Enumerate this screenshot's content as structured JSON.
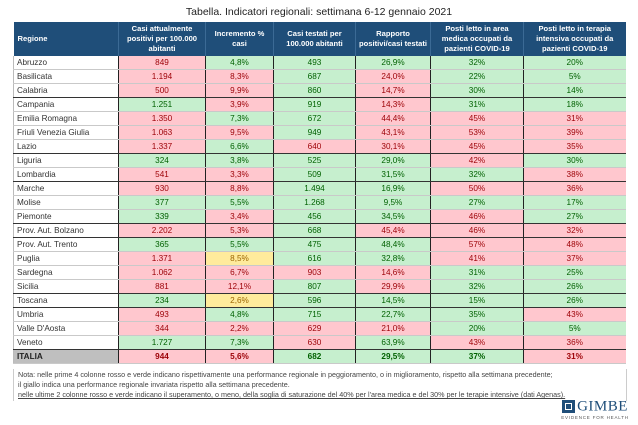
{
  "title": "Tabella. Indicatori regionali: settimana 6-12 gennaio 2021",
  "headers": [
    "Regione",
    "Casi attualmente positivi per 100.000 abitanti",
    "Incremento % casi",
    "Casi testati per 100.000 abitanti",
    "Rapporto positivi/casi testati",
    "Posti letto in area medica occupati da pazienti COVID-19",
    "Posti letto in terapia intensiva occupati da pazienti COVID-19"
  ],
  "rows": [
    {
      "region": "Abruzzo",
      "cells": [
        [
          "849",
          "red"
        ],
        [
          "4,8%",
          "green"
        ],
        [
          "493",
          "green"
        ],
        [
          "26,9%",
          "green"
        ],
        [
          "32%",
          "green"
        ],
        [
          "20%",
          "green"
        ]
      ]
    },
    {
      "region": "Basilicata",
      "cells": [
        [
          "1.194",
          "red"
        ],
        [
          "8,3%",
          "red"
        ],
        [
          "687",
          "green"
        ],
        [
          "24,0%",
          "red"
        ],
        [
          "22%",
          "green"
        ],
        [
          "5%",
          "green"
        ]
      ]
    },
    {
      "region": "Calabria",
      "cells": [
        [
          "500",
          "red"
        ],
        [
          "9,9%",
          "red"
        ],
        [
          "860",
          "green"
        ],
        [
          "14,7%",
          "red"
        ],
        [
          "30%",
          "green"
        ],
        [
          "14%",
          "green"
        ]
      ]
    },
    {
      "region": "Campania",
      "cells": [
        [
          "1.251",
          "green"
        ],
        [
          "3,9%",
          "red"
        ],
        [
          "919",
          "green"
        ],
        [
          "14,3%",
          "red"
        ],
        [
          "31%",
          "green"
        ],
        [
          "18%",
          "green"
        ]
      ]
    },
    {
      "region": "Emilia Romagna",
      "cells": [
        [
          "1.350",
          "red"
        ],
        [
          "7,3%",
          "green"
        ],
        [
          "672",
          "green"
        ],
        [
          "44,4%",
          "red"
        ],
        [
          "45%",
          "red"
        ],
        [
          "31%",
          "red"
        ]
      ]
    },
    {
      "region": "Friuli Venezia Giulia",
      "cells": [
        [
          "1.063",
          "red"
        ],
        [
          "9,5%",
          "red"
        ],
        [
          "949",
          "green"
        ],
        [
          "43,1%",
          "red"
        ],
        [
          "53%",
          "red"
        ],
        [
          "39%",
          "red"
        ]
      ]
    },
    {
      "region": "Lazio",
      "cells": [
        [
          "1.337",
          "red"
        ],
        [
          "6,6%",
          "green"
        ],
        [
          "640",
          "red"
        ],
        [
          "30,1%",
          "red"
        ],
        [
          "45%",
          "red"
        ],
        [
          "35%",
          "red"
        ]
      ]
    },
    {
      "region": "Liguria",
      "cells": [
        [
          "324",
          "green"
        ],
        [
          "3,8%",
          "green"
        ],
        [
          "525",
          "green"
        ],
        [
          "29,0%",
          "green"
        ],
        [
          "42%",
          "red"
        ],
        [
          "30%",
          "green"
        ]
      ]
    },
    {
      "region": "Lombardia",
      "cells": [
        [
          "541",
          "red"
        ],
        [
          "3,3%",
          "red"
        ],
        [
          "509",
          "green"
        ],
        [
          "31,5%",
          "green"
        ],
        [
          "32%",
          "green"
        ],
        [
          "38%",
          "red"
        ]
      ]
    },
    {
      "region": "Marche",
      "cells": [
        [
          "930",
          "red"
        ],
        [
          "8,8%",
          "red"
        ],
        [
          "1.494",
          "green"
        ],
        [
          "16,9%",
          "green"
        ],
        [
          "50%",
          "red"
        ],
        [
          "36%",
          "red"
        ]
      ]
    },
    {
      "region": "Molise",
      "cells": [
        [
          "377",
          "green"
        ],
        [
          "5,5%",
          "green"
        ],
        [
          "1.268",
          "green"
        ],
        [
          "9,5%",
          "green"
        ],
        [
          "27%",
          "green"
        ],
        [
          "17%",
          "green"
        ]
      ]
    },
    {
      "region": "Piemonte",
      "cells": [
        [
          "339",
          "green"
        ],
        [
          "3,4%",
          "red"
        ],
        [
          "456",
          "green"
        ],
        [
          "34,5%",
          "green"
        ],
        [
          "46%",
          "red"
        ],
        [
          "27%",
          "green"
        ]
      ]
    },
    {
      "region": "Prov. Aut. Bolzano",
      "cells": [
        [
          "2.202",
          "red"
        ],
        [
          "5,3%",
          "red"
        ],
        [
          "668",
          "green"
        ],
        [
          "45,4%",
          "red"
        ],
        [
          "46%",
          "red"
        ],
        [
          "32%",
          "red"
        ]
      ]
    },
    {
      "region": "Prov. Aut. Trento",
      "cells": [
        [
          "365",
          "green"
        ],
        [
          "5,5%",
          "green"
        ],
        [
          "475",
          "green"
        ],
        [
          "48,4%",
          "green"
        ],
        [
          "57%",
          "red"
        ],
        [
          "48%",
          "red"
        ]
      ]
    },
    {
      "region": "Puglia",
      "cells": [
        [
          "1.371",
          "red"
        ],
        [
          "8,5%",
          "yellow"
        ],
        [
          "616",
          "green"
        ],
        [
          "32,8%",
          "green"
        ],
        [
          "41%",
          "red"
        ],
        [
          "37%",
          "red"
        ]
      ]
    },
    {
      "region": "Sardegna",
      "cells": [
        [
          "1.062",
          "red"
        ],
        [
          "6,7%",
          "red"
        ],
        [
          "903",
          "red"
        ],
        [
          "14,6%",
          "red"
        ],
        [
          "31%",
          "green"
        ],
        [
          "25%",
          "green"
        ]
      ]
    },
    {
      "region": "Sicilia",
      "cells": [
        [
          "881",
          "red"
        ],
        [
          "12,1%",
          "red"
        ],
        [
          "807",
          "green"
        ],
        [
          "29,9%",
          "red"
        ],
        [
          "32%",
          "green"
        ],
        [
          "26%",
          "green"
        ]
      ]
    },
    {
      "region": "Toscana",
      "cells": [
        [
          "234",
          "green"
        ],
        [
          "2,6%",
          "yellow"
        ],
        [
          "596",
          "green"
        ],
        [
          "14,5%",
          "green"
        ],
        [
          "15%",
          "green"
        ],
        [
          "26%",
          "green"
        ]
      ]
    },
    {
      "region": "Umbria",
      "cells": [
        [
          "493",
          "red"
        ],
        [
          "4,8%",
          "green"
        ],
        [
          "715",
          "green"
        ],
        [
          "22,7%",
          "green"
        ],
        [
          "35%",
          "green"
        ],
        [
          "43%",
          "red"
        ]
      ]
    },
    {
      "region": "Valle D'Aosta",
      "cells": [
        [
          "344",
          "red"
        ],
        [
          "2,2%",
          "red"
        ],
        [
          "629",
          "red"
        ],
        [
          "21,0%",
          "red"
        ],
        [
          "20%",
          "green"
        ],
        [
          "5%",
          "green"
        ]
      ]
    },
    {
      "region": "Veneto",
      "cells": [
        [
          "1.727",
          "green"
        ],
        [
          "7,3%",
          "green"
        ],
        [
          "630",
          "red"
        ],
        [
          "63,9%",
          "green"
        ],
        [
          "43%",
          "red"
        ],
        [
          "36%",
          "red"
        ]
      ]
    },
    {
      "region": "ITALIA",
      "cells": [
        [
          "944",
          "red"
        ],
        [
          "5,6%",
          "red"
        ],
        [
          "682",
          "green"
        ],
        [
          "29,5%",
          "green"
        ],
        [
          "37%",
          "green"
        ],
        [
          "31%",
          "red"
        ]
      ]
    }
  ],
  "notes": [
    "Nota: nelle prime 4 colonne rosso e verde indicano rispettivamente una performance regionale in peggioramento, o in miglioramento, rispetto alla settimana precedente;",
    "il giallo indica una performance regionale invariata rispetto alla settimana precedente.",
    "nelle ultime 2 colonne rosso e verde indicano il superamento, o meno, della soglia di saturazione del 40% per l'area medica e del 30% per le terapie intensive (dati Agenas)."
  ],
  "logo": {
    "name": "GIMBE",
    "tagline": "EVIDENCE FOR HEALTH"
  },
  "colors": {
    "header": "#1f4e79",
    "worse": "#ffc7ce",
    "better": "#c6efce",
    "unchanged": "#ffeb9c",
    "italia_label": "#bfbfbf"
  }
}
